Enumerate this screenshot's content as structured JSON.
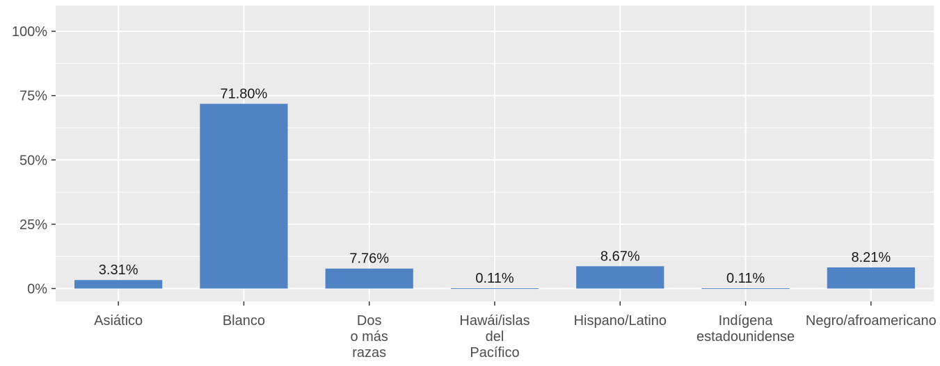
{
  "chart_data": {
    "type": "bar",
    "categories": [
      "Asiático",
      "Blanco",
      "Dos\no más\nrazas",
      "Hawái/islas\ndel\nPacífico",
      "Hispano/Latino",
      "Indígena\nestadounidense",
      "Negro/afroamericano"
    ],
    "values": [
      3.31,
      71.8,
      7.76,
      0.11,
      8.67,
      0.11,
      8.21
    ],
    "data_labels": [
      "3.31%",
      "71.80%",
      "7.76%",
      "0.11%",
      "8.67%",
      "0.11%",
      "8.21%"
    ],
    "yticks": [
      0,
      25,
      50,
      75,
      100
    ],
    "ytick_labels": [
      "0%",
      "25%",
      "50%",
      "75%",
      "100%"
    ],
    "ylim": [
      -5,
      110
    ],
    "title": "",
    "xlabel": "",
    "ylabel": "",
    "grid": true,
    "bar_color": "#4f83c4",
    "panel_color": "#ebebeb",
    "grid_color": "#ffffff"
  }
}
